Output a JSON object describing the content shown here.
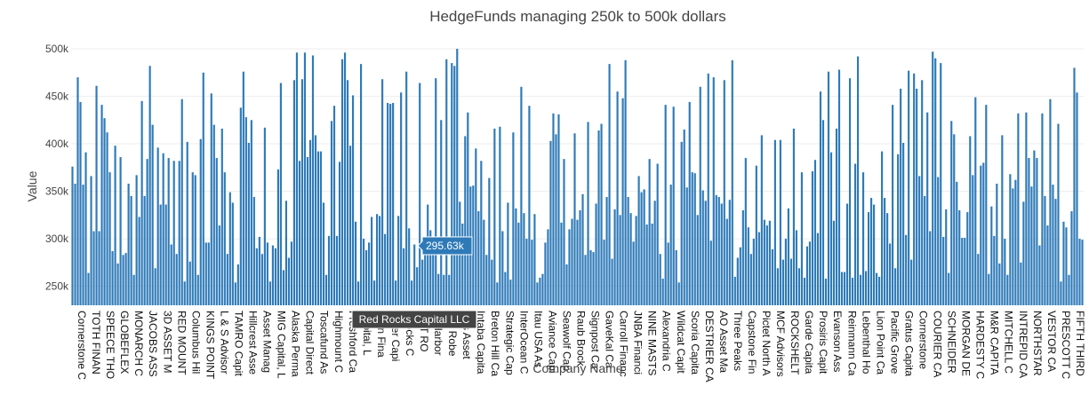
{
  "chart_data": {
    "type": "bar",
    "title": "HedgeFunds managing 250k to 500k dollars",
    "xlabel": "Company Name",
    "ylabel": "Value",
    "ylim": [
      230000,
      500000
    ],
    "yticks": [
      250000,
      300000,
      350000,
      400000,
      450000,
      500000
    ],
    "ytick_labels": [
      "250k",
      "300k",
      "350k",
      "400k",
      "450k",
      "500k"
    ],
    "color": "#2e7ab8",
    "grid": true,
    "category_labels": [
      "Cornerstone C",
      "TOTH FINAN",
      "SPEECE THO",
      "GLOBEFLEX",
      "MONARCH C",
      "JACOBS ASS",
      "3D ASSET M",
      "RED MOUNT",
      "Columbus Hil",
      "KINGS POINT",
      "L & S Advisor",
      "TAMRO Capit",
      "Hillcrest Asse",
      "Asset Manag",
      "MIG Capital, L",
      "Alaska Perma",
      "Capital Direct",
      "Toscafund As",
      "Highmount C",
      "Freshford Ca",
      "Capital, L",
      "nson Fina",
      "water Capi",
      "l Rocks C",
      "GHT RO",
      "ar Harbor",
      "son Robe",
      "nols Asset",
      "Intaba Capita",
      "Breton Hill Ca",
      "Strategic Cap",
      "InterOcean C",
      "Itau USA As",
      "Aviance Capi",
      "Seawolf Cap",
      "Raub Brock",
      "Signpost Ca",
      "GaveKal Ca",
      "Carroll Financ",
      "JNBA Financi",
      "NINE MASTS",
      "Alexandria C",
      "Wildcat Capit",
      "Scoria Capita",
      "DESTRIER CA",
      "AO Asset Ma",
      "Three Peaks",
      "Capstone Fin",
      "Pictet North A",
      "MCF Advisors",
      "ROCKSHELT",
      "Garde Capita",
      "Prosiris Capit",
      "Evanson Ass",
      "Reinmann Ca",
      "Lebenthal Ho",
      "Lion Point Ca",
      "Pacific Grove",
      "Gratus Capita",
      "Cornerstone",
      "COURIER CA",
      "SCHNEIDER",
      "MORGAN DE",
      "HARDESTY C",
      "M&R CAPITA",
      "MITCHELL C",
      "INTREPID CA",
      "NORTHSTAR",
      "VESTOR CA",
      "PRESCOTT C",
      "FIFTH THIRD"
    ],
    "values": [
      376000,
      358000,
      470000,
      444000,
      357000,
      391000,
      264000,
      366000,
      308000,
      461000,
      308000,
      441000,
      427000,
      412000,
      370000,
      287000,
      398000,
      274000,
      386000,
      283000,
      285000,
      358000,
      345000,
      262000,
      367000,
      323000,
      445000,
      345000,
      384000,
      482000,
      420000,
      269000,
      396000,
      336000,
      390000,
      336000,
      385000,
      294000,
      382000,
      284000,
      382000,
      447000,
      255000,
      402000,
      276000,
      370000,
      367000,
      262000,
      405000,
      475000,
      296000,
      296000,
      453000,
      420000,
      385000,
      314000,
      416000,
      370000,
      284000,
      349000,
      338000,
      254000,
      273000,
      438000,
      476000,
      428000,
      401000,
      425000,
      344000,
      290000,
      302000,
      284000,
      417000,
      296000,
      255000,
      293000,
      290000,
      373000,
      464000,
      267000,
      340000,
      280000,
      297000,
      467000,
      496000,
      382000,
      468000,
      496000,
      386000,
      404000,
      493000,
      409000,
      392000,
      392000,
      338000,
      262000,
      303000,
      424000,
      440000,
      303000,
      381000,
      489000,
      496000,
      467000,
      398000,
      451000,
      318000,
      255000,
      484000,
      300000,
      288000,
      296000,
      323000,
      256000,
      326000,
      324000,
      468000,
      305000,
      443000,
      442000,
      443000,
      256000,
      324000,
      454000,
      290000,
      476000,
      311000,
      256000,
      294000,
      270000,
      464000,
      278000,
      298000,
      336000,
      309000,
      301000,
      469000,
      263000,
      425000,
      262000,
      489000,
      262000,
      485000,
      482000,
      500000,
      339000,
      316000,
      408000,
      433000,
      355000,
      356000,
      395000,
      329000,
      382000,
      320000,
      283000,
      364000,
      278000,
      416000,
      254000,
      418000,
      308000,
      265000,
      338000,
      257000,
      412000,
      332000,
      317000,
      460000,
      327000,
      300000,
      440000,
      299000,
      326000,
      254000,
      259000,
      263000,
      296000,
      310000,
      403000,
      432000,
      410000,
      431000,
      317000,
      384000,
      273000,
      310000,
      321000,
      411000,
      320000,
      330000,
      347000,
      283000,
      423000,
      288000,
      286000,
      337000,
      414000,
      421000,
      299000,
      344000,
      484000,
      279000,
      331000,
      455000,
      325000,
      448000,
      488000,
      344000,
      327000,
      297000,
      324000,
      366000,
      349000,
      352000,
      315000,
      384000,
      316000,
      340000,
      379000,
      284000,
      258000,
      441000,
      296000,
      357000,
      439000,
      288000,
      254000,
      402000,
      415000,
      354000,
      444000,
      370000,
      369000,
      325000,
      460000,
      351000,
      340000,
      474000,
      298000,
      470000,
      346000,
      344000,
      337000,
      467000,
      321000,
      341000,
      488000,
      260000,
      280000,
      291000,
      330000,
      385000,
      312000,
      284000,
      300000,
      377000,
      307000,
      409000,
      320000,
      314000,
      319000,
      289000,
      404000,
      269000,
      404000,
      278000,
      300000,
      332000,
      279000,
      416000,
      309000,
      269000,
      370000,
      259000,
      292000,
      297000,
      371000,
      383000,
      306000,
      455000,
      425000,
      258000,
      476000,
      391000,
      319000,
      416000,
      478000,
      265000,
      265000,
      337000,
      469000,
      259000,
      379000,
      492000,
      262000,
      370000,
      266000,
      328000,
      343000,
      336000,
      264000,
      260000,
      392000,
      343000,
      327000,
      295000,
      441000,
      269000,
      389000,
      458000,
      401000,
      304000,
      477000,
      278000,
      474000,
      458000,
      366000,
      467000,
      345000,
      433000,
      308000,
      497000,
      490000,
      365000,
      485000,
      302000,
      331000,
      264000,
      424000,
      410000,
      360000,
      330000,
      301000,
      301000,
      328000,
      408000,
      367000,
      449000,
      284000,
      377000,
      380000,
      441000,
      263000,
      334000,
      303000,
      358000,
      274000,
      409000,
      300000,
      262000,
      368000,
      353000,
      362000,
      432000,
      275000,
      339000,
      433000,
      385000,
      355000,
      393000,
      385000,
      293000,
      432000,
      345000,
      314000,
      447000,
      357000,
      342000,
      421000,
      255000,
      318000,
      312000,
      262000,
      329000,
      480000,
      454000,
      300000,
      299000
    ],
    "tooltip": {
      "value": "295.63k",
      "company": "Red Rocks Capital LLC"
    }
  }
}
